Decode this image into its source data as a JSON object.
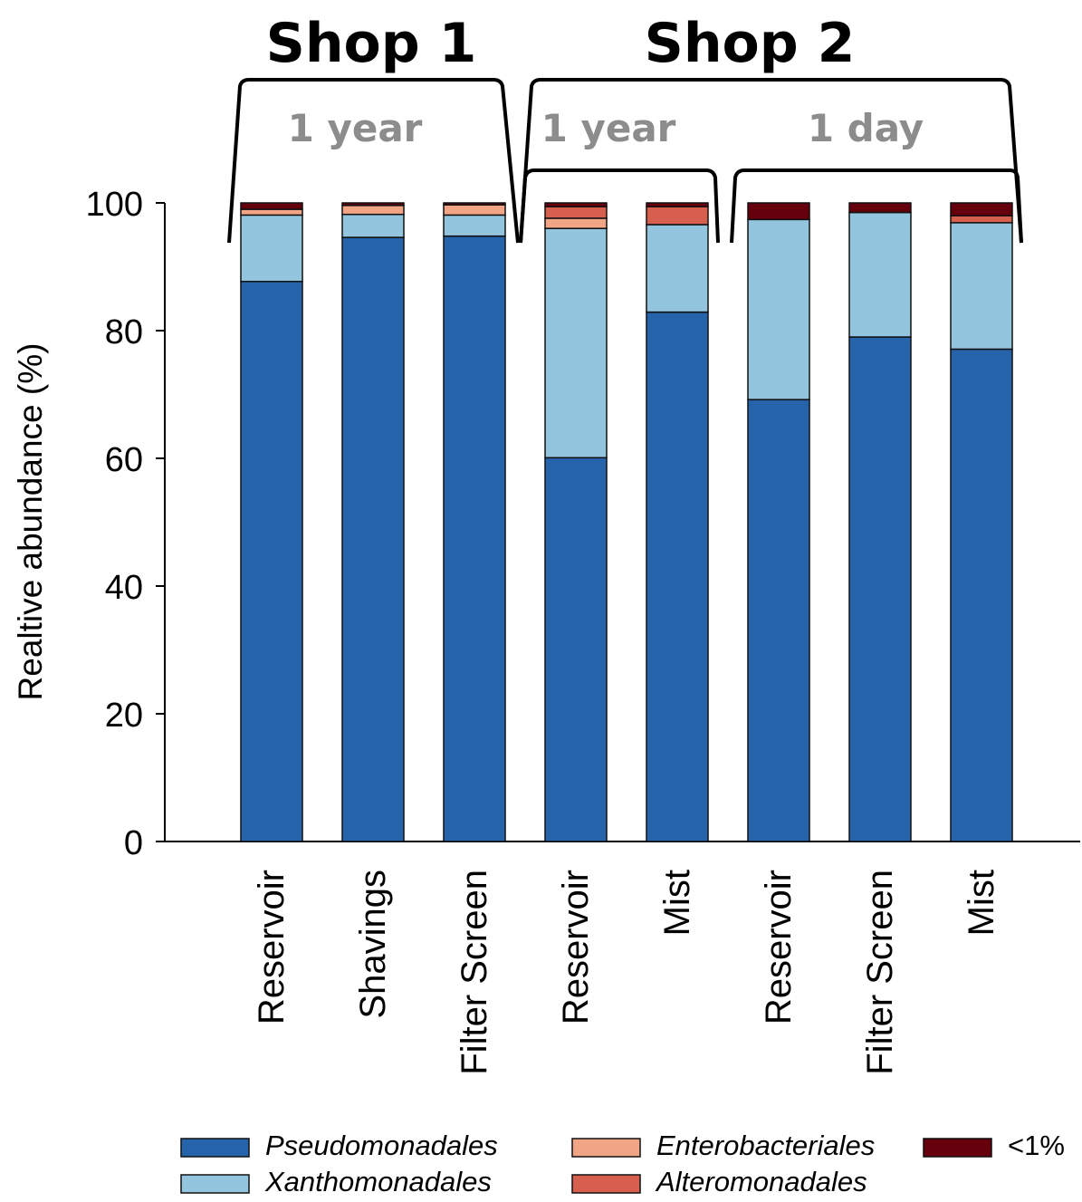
{
  "groups": [
    {
      "title": "Shop 1",
      "subgroups": [
        {
          "label": "1 year"
        }
      ]
    },
    {
      "title": "Shop 2",
      "subgroups": [
        {
          "label": "1 year"
        },
        {
          "label": "1 day"
        }
      ]
    }
  ],
  "chart_data": {
    "type": "bar",
    "stacked": true,
    "ylabel": "Realtive abundance (%)",
    "xlabel": "",
    "ylim": [
      0,
      100
    ],
    "yticks": [
      0,
      20,
      40,
      60,
      80,
      100
    ],
    "categories": [
      "Reservoir",
      "Shavings",
      "Filter Screen",
      "Reservoir",
      "Mist",
      "Reservoir",
      "Filter Screen",
      "Mist"
    ],
    "series": [
      {
        "name": "Pseudomonadales",
        "color": "#2563ab",
        "values": [
          87.7,
          94.6,
          94.8,
          60.1,
          82.9,
          69.2,
          79.0,
          77.1
        ]
      },
      {
        "name": "Xanthomonadales",
        "color": "#94c5df",
        "values": [
          10.4,
          3.6,
          3.3,
          35.9,
          13.7,
          28.2,
          19.5,
          19.8
        ]
      },
      {
        "name": "Enterobacteriales",
        "color": "#f2a584",
        "values": [
          0.9,
          1.4,
          1.6,
          1.6,
          0.0,
          0.0,
          0.0,
          0.0
        ]
      },
      {
        "name": "Alteromonadales",
        "color": "#d6604d",
        "values": [
          0.0,
          0.0,
          0.0,
          1.8,
          2.8,
          0.0,
          0.0,
          1.1
        ]
      },
      {
        "name": "<1%",
        "color": "#67000d",
        "values": [
          1.0,
          0.4,
          0.3,
          0.6,
          0.6,
          2.6,
          1.5,
          2.0
        ]
      }
    ],
    "legend_position": "bottom"
  }
}
